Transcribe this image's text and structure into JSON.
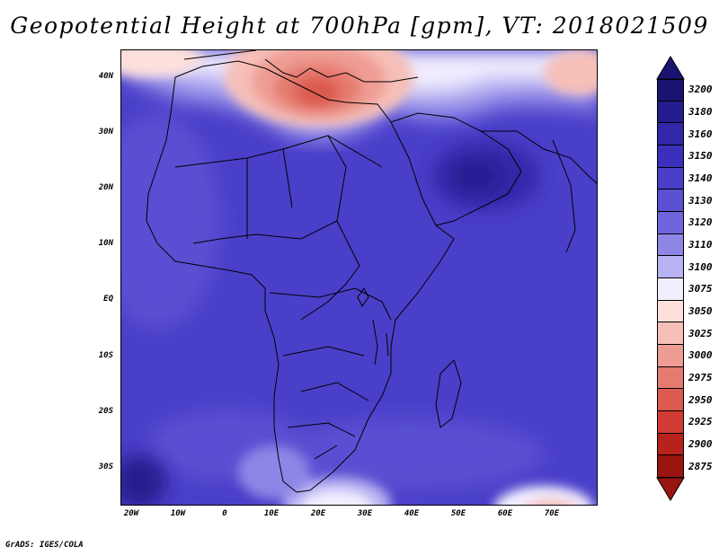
{
  "title": "Geopotential Height at 700hPa [gpm], VT: 2018021509",
  "footer": "GrADS: IGES/COLA",
  "map": {
    "region": "Africa and Middle East",
    "field": "geopotential height 700hPa",
    "lat_labels": [
      "40N",
      "30N",
      "20N",
      "10N",
      "EQ",
      "10S",
      "20S",
      "30S"
    ],
    "lon_labels": [
      "20W",
      "10W",
      "0",
      "10E",
      "20E",
      "30E",
      "40E",
      "50E",
      "60E",
      "70E"
    ]
  },
  "colorbar": {
    "labels": [
      "3200",
      "3180",
      "3160",
      "3150",
      "3140",
      "3130",
      "3120",
      "3110",
      "3100",
      "3075",
      "3050",
      "3025",
      "3000",
      "2975",
      "2950",
      "2925",
      "2900",
      "2875"
    ],
    "colors": [
      "#1a1470",
      "#251c8e",
      "#3127a8",
      "#3a30bb",
      "#4a3fc9",
      "#5a50d2",
      "#7065dc",
      "#8e86e6",
      "#b8b3f2",
      "#f2eeff",
      "#fde0dc",
      "#f6bfb8",
      "#ee9d94",
      "#e57a70",
      "#dc5a50",
      "#d23b33",
      "#b8221d",
      "#9a1410"
    ]
  }
}
